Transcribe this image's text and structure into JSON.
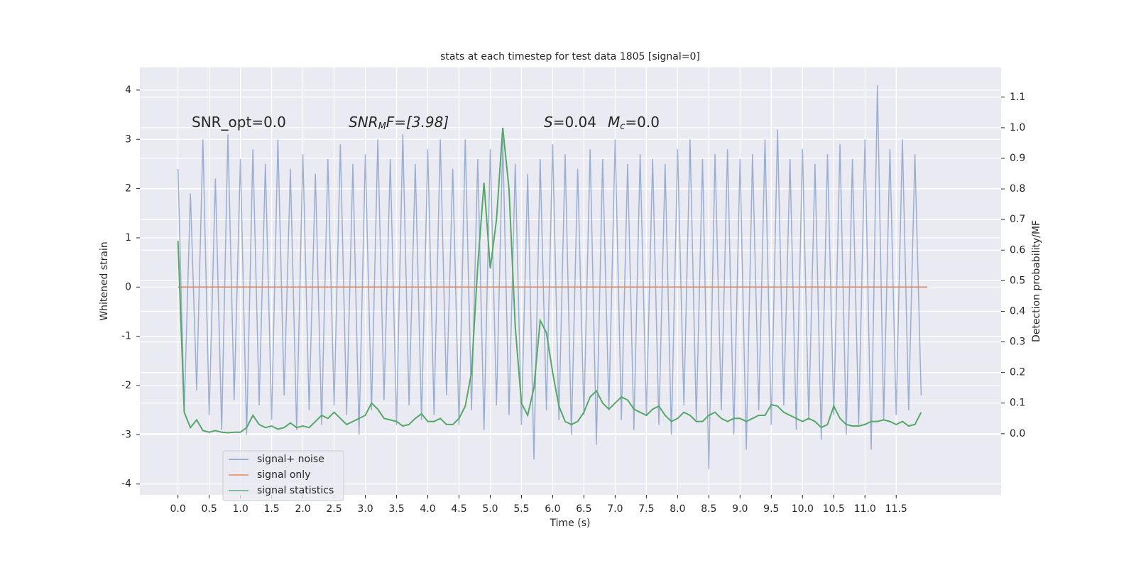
{
  "chart_data": {
    "type": "line",
    "title": "stats at each timestep for test data 1805 [signal=0]",
    "xlabel": "Time (s)",
    "ylabel": "Whitened strain",
    "y2label": "Detection probability/MF",
    "annotations": [
      [
        "SNR_opt=0.0"
      ],
      [
        "SNR",
        "M",
        "F=[3.98]"
      ],
      [
        "S",
        "=0.04",
        "M",
        "c",
        "=0.0"
      ]
    ],
    "xlim": [
      -0.61,
      13.18
    ],
    "ylim": [
      -4.22,
      4.46
    ],
    "y2lim": [
      -0.2,
      1.197
    ],
    "xticks": [
      {
        "value": 0,
        "label": "0.0"
      },
      0.5,
      {
        "value": 1,
        "label": "1.0"
      },
      1.5,
      {
        "value": 2,
        "label": "2.0"
      },
      2.5,
      {
        "value": 3,
        "label": "3.0"
      },
      3.5,
      {
        "value": 4,
        "label": "4.0"
      },
      4.5,
      {
        "value": 5,
        "label": "5.0"
      },
      5.5,
      {
        "value": 6,
        "label": "6.0"
      },
      6.5,
      {
        "value": 7,
        "label": "7.0"
      },
      7.5,
      {
        "value": 8,
        "label": "8.0"
      },
      8.5,
      {
        "value": 9,
        "label": "9.0"
      },
      9.5,
      {
        "value": 10,
        "label": "10.0"
      },
      10.5,
      {
        "value": 11,
        "label": "11.0"
      },
      11.5
    ],
    "yticks": [
      -4,
      -3,
      -2,
      -1,
      0,
      1,
      2,
      3,
      4
    ],
    "y2ticks": [
      {
        "value": 0,
        "label": "0.0"
      },
      0.1,
      0.2,
      0.3,
      0.4,
      0.5,
      0.6,
      0.7,
      0.8,
      0.9,
      {
        "value": 1,
        "label": "1.0"
      },
      1.1
    ],
    "grid": true,
    "legend": "lower left",
    "x": [
      0,
      0.1,
      0.2,
      0.3,
      0.4,
      0.5,
      0.6,
      0.7,
      0.8,
      0.9,
      1,
      1.1,
      1.2,
      1.3,
      1.4,
      1.5,
      1.6,
      1.7,
      1.8,
      1.9,
      2,
      2.1,
      2.2,
      2.3,
      2.4,
      2.5,
      2.6,
      2.7,
      2.8,
      2.9,
      3,
      3.1,
      3.2,
      3.3,
      3.4,
      3.5,
      3.6,
      3.7,
      3.8,
      3.9,
      4,
      4.1,
      4.2,
      4.3,
      4.4,
      4.5,
      4.6,
      4.7,
      4.8,
      4.9,
      5,
      5.1,
      5.2,
      5.3,
      5.4,
      5.5,
      5.6,
      5.7,
      5.8,
      5.9,
      6,
      6.1,
      6.2,
      6.3,
      6.4,
      6.5,
      6.6,
      6.7,
      6.8,
      6.9,
      7,
      7.1,
      7.2,
      7.3,
      7.4,
      7.5,
      7.6,
      7.7,
      7.8,
      7.9,
      8,
      8.1,
      8.2,
      8.3,
      8.4,
      8.5,
      8.6,
      8.7,
      8.8,
      8.9,
      9,
      9.1,
      9.2,
      9.3,
      9.4,
      9.5,
      9.6,
      9.7,
      9.8,
      9.9,
      10,
      10.1,
      10.2,
      10.3,
      10.4,
      10.5,
      10.6,
      10.7,
      10.8,
      10.9,
      11,
      11.1,
      11.2,
      11.3,
      11.4,
      11.5,
      11.6,
      11.7,
      11.8,
      11.9
    ],
    "series": [
      {
        "name": "signal+ noise",
        "color": "#4c72b0",
        "opacity": 0.5,
        "values": [
          2.4,
          -2.5,
          1.9,
          -2.1,
          3.0,
          -2.6,
          2.2,
          -2.9,
          3.1,
          -2.3,
          2.6,
          -3.0,
          2.8,
          -2.4,
          2.5,
          -2.7,
          3.0,
          -2.2,
          2.4,
          -2.9,
          2.7,
          -2.5,
          2.3,
          -2.8,
          2.6,
          -2.4,
          2.9,
          -2.6,
          2.5,
          -3.0,
          2.7,
          -2.5,
          3.0,
          -2.3,
          2.6,
          -2.8,
          3.1,
          -2.4,
          2.5,
          -2.7,
          2.8,
          -2.6,
          3.0,
          -2.2,
          2.4,
          -2.8,
          3.0,
          -2.5,
          2.6,
          -2.9,
          2.8,
          -2.4,
          3.0,
          -2.6,
          2.5,
          -2.8,
          2.3,
          -3.5,
          2.6,
          -2.5,
          2.9,
          -2.7,
          2.7,
          -3.0,
          2.4,
          -2.6,
          2.8,
          -3.2,
          2.6,
          -2.5,
          3.0,
          -2.7,
          2.5,
          -2.9,
          2.7,
          -2.6,
          2.6,
          -2.8,
          2.5,
          -3.0,
          2.8,
          -2.4,
          3.0,
          -2.7,
          2.6,
          -3.7,
          2.7,
          -2.5,
          2.8,
          -3.0,
          2.6,
          -3.3,
          2.7,
          -2.5,
          3.0,
          -2.8,
          3.2,
          -2.4,
          2.6,
          -2.9,
          2.8,
          -2.7,
          2.5,
          -3.1,
          2.7,
          -2.6,
          2.9,
          -3.0,
          2.6,
          -2.8,
          3.0,
          -3.3,
          4.1,
          -2.7,
          2.8,
          -2.6,
          3.0,
          -2.5,
          2.7,
          -2.2
        ]
      },
      {
        "name": "signal only",
        "color": "#dd8452",
        "x": [
          0,
          12
        ],
        "values": [
          0,
          0
        ]
      },
      {
        "name": "signal statistics",
        "color": "#55a868",
        "axis": "y2",
        "values": [
          0.63,
          0.07,
          0.02,
          0.045,
          0.01,
          0.005,
          0.01,
          0.005,
          0.003,
          0.005,
          0.005,
          0.02,
          0.06,
          0.03,
          0.02,
          0.025,
          0.015,
          0.02,
          0.035,
          0.02,
          0.025,
          0.02,
          0.04,
          0.06,
          0.05,
          0.07,
          0.05,
          0.03,
          0.04,
          0.05,
          0.06,
          0.1,
          0.08,
          0.05,
          0.045,
          0.04,
          0.025,
          0.03,
          0.05,
          0.065,
          0.04,
          0.04,
          0.05,
          0.03,
          0.03,
          0.05,
          0.09,
          0.2,
          0.55,
          0.82,
          0.54,
          0.7,
          1.0,
          0.8,
          0.35,
          0.1,
          0.06,
          0.15,
          0.37,
          0.33,
          0.2,
          0.09,
          0.04,
          0.03,
          0.04,
          0.07,
          0.12,
          0.14,
          0.1,
          0.08,
          0.1,
          0.12,
          0.11,
          0.08,
          0.07,
          0.06,
          0.08,
          0.09,
          0.06,
          0.04,
          0.05,
          0.07,
          0.06,
          0.04,
          0.04,
          0.06,
          0.07,
          0.05,
          0.04,
          0.05,
          0.05,
          0.04,
          0.05,
          0.06,
          0.06,
          0.095,
          0.09,
          0.07,
          0.06,
          0.05,
          0.04,
          0.05,
          0.04,
          0.02,
          0.03,
          0.09,
          0.05,
          0.03,
          0.025,
          0.025,
          0.03,
          0.04,
          0.04,
          0.045,
          0.04,
          0.03,
          0.04,
          0.025,
          0.03,
          0.07
        ]
      }
    ]
  }
}
